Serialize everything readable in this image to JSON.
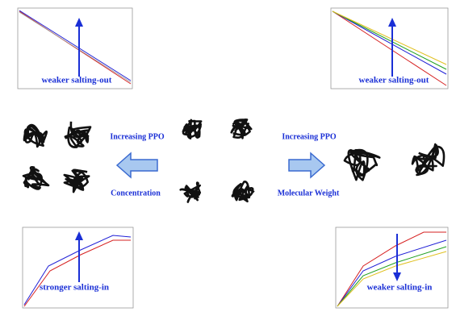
{
  "panels": {
    "top_left": {
      "label": "weaker salting-out"
    },
    "top_right": {
      "label": "weaker salting-out"
    },
    "bottom_left": {
      "label": "stronger salting-in"
    },
    "bottom_right": {
      "label": "weaker salting-in"
    }
  },
  "middle": {
    "left_top": "Increasing PPO",
    "left_bottom": "Concentration",
    "right_top": "Increasing PPO",
    "right_bottom": "Molecular Weight"
  }
}
